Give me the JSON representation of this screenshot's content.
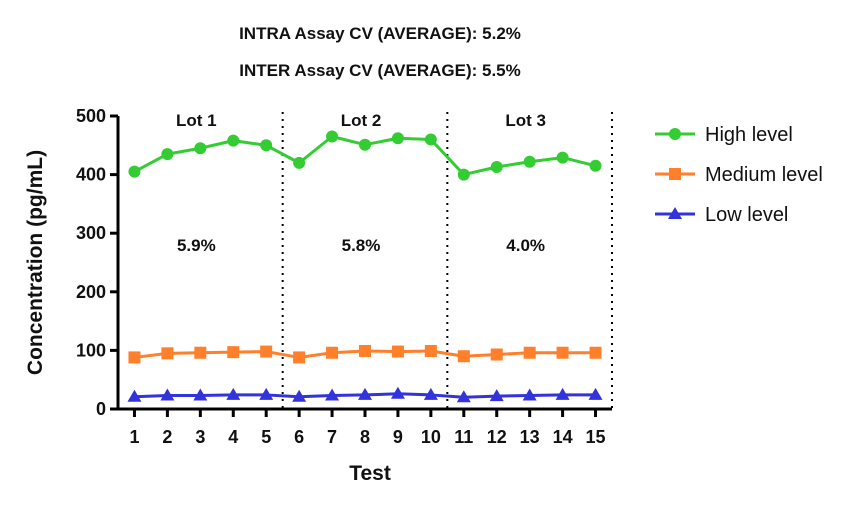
{
  "chart_data": {
    "type": "line",
    "header_lines": [
      "INTRA Assay CV (AVERAGE): 5.2%",
      "INTER Assay CV (AVERAGE): 5.5%"
    ],
    "xlabel": "Test",
    "ylabel": "Concentration (pg/mL)",
    "x": [
      1,
      2,
      3,
      4,
      5,
      6,
      7,
      8,
      9,
      10,
      11,
      12,
      13,
      14,
      15
    ],
    "ylim": [
      0,
      500
    ],
    "yticks": [
      0,
      100,
      200,
      300,
      400,
      500
    ],
    "legend_position": "right",
    "series": [
      {
        "name": "High level",
        "color": "#33cc33",
        "marker": "circle",
        "values": [
          405,
          435,
          445,
          458,
          450,
          420,
          465,
          451,
          462,
          460,
          400,
          413,
          422,
          429,
          415
        ]
      },
      {
        "name": "Medium level",
        "color": "#ff7f2a",
        "marker": "square",
        "values": [
          88,
          95,
          96,
          97,
          98,
          88,
          96,
          99,
          98,
          99,
          90,
          93,
          96,
          96,
          96
        ]
      },
      {
        "name": "Low level",
        "color": "#3333dd",
        "marker": "triangle",
        "values": [
          21,
          23,
          23,
          24,
          24,
          21,
          23,
          24,
          26,
          24,
          20,
          22,
          23,
          24,
          24
        ]
      }
    ],
    "lots": [
      {
        "label": "Lot 1",
        "cv": "5.9%",
        "start": 1,
        "end": 5
      },
      {
        "label": "Lot 2",
        "cv": "5.8%",
        "start": 6,
        "end": 10
      },
      {
        "label": "Lot 3",
        "cv": "4.0%",
        "start": 11,
        "end": 15
      }
    ],
    "separators": [
      5.5,
      10.5,
      15.5
    ]
  }
}
